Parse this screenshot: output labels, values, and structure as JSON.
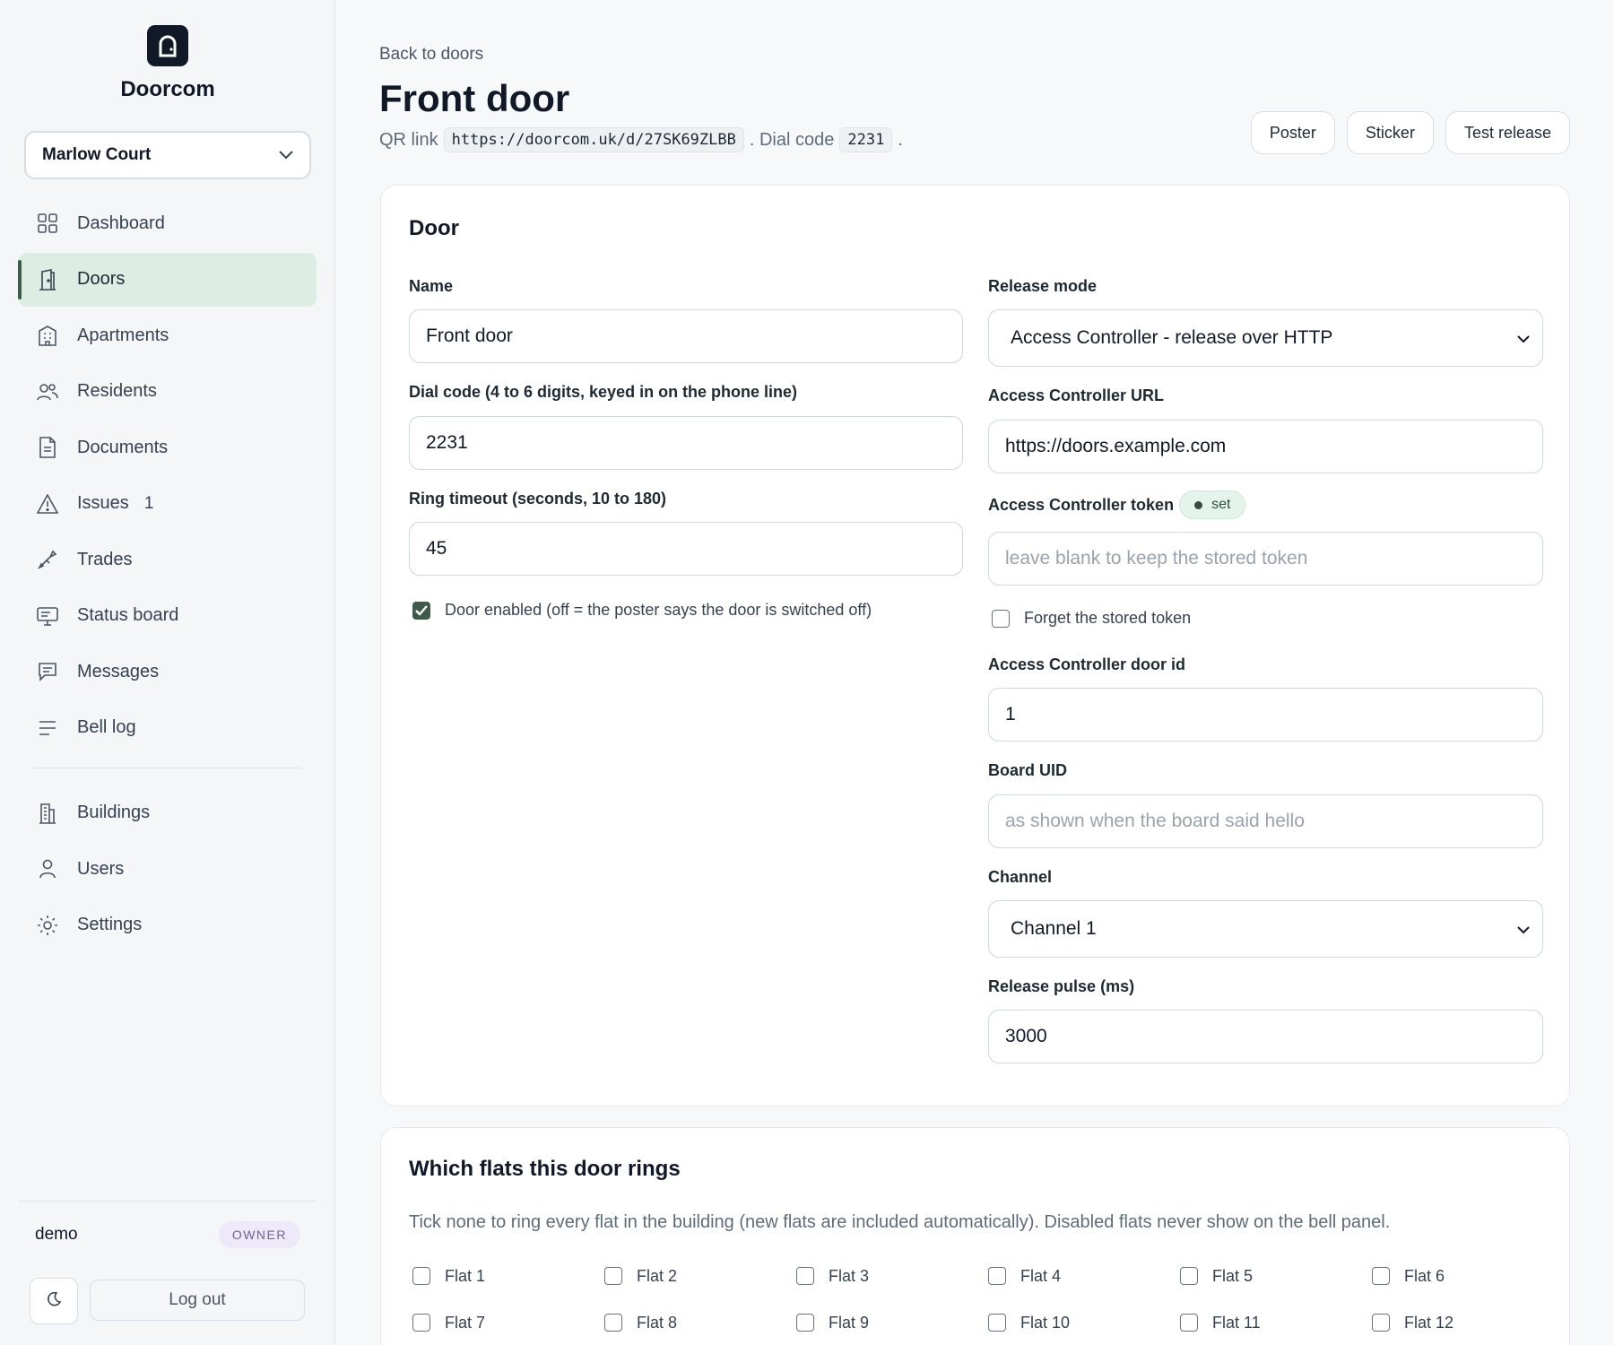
{
  "app": {
    "name": "Doorcom"
  },
  "sidebar": {
    "building": "Marlow Court",
    "items": [
      {
        "label": "Dashboard",
        "icon": "dashboard-icon",
        "active": false
      },
      {
        "label": "Doors",
        "icon": "door-icon",
        "active": true
      },
      {
        "label": "Apartments",
        "icon": "apartment-icon",
        "active": false
      },
      {
        "label": "Residents",
        "icon": "residents-icon",
        "active": false
      },
      {
        "label": "Documents",
        "icon": "document-icon",
        "active": false
      },
      {
        "label": "Issues",
        "icon": "warning-icon",
        "active": false,
        "count": "1"
      },
      {
        "label": "Trades",
        "icon": "wrench-icon",
        "active": false
      },
      {
        "label": "Status board",
        "icon": "monitor-icon",
        "active": false
      },
      {
        "label": "Messages",
        "icon": "message-icon",
        "active": false
      },
      {
        "label": "Bell log",
        "icon": "list-icon",
        "active": false
      }
    ],
    "admin_items": [
      {
        "label": "Buildings",
        "icon": "building-icon"
      },
      {
        "label": "Users",
        "icon": "user-icon"
      },
      {
        "label": "Settings",
        "icon": "settings-icon"
      }
    ],
    "user": {
      "name": "demo",
      "role": "OWNER"
    },
    "logout_label": "Log out"
  },
  "header": {
    "back_link": "Back to doors",
    "title": "Front door",
    "qr_prefix": "QR link",
    "qr_link": "https://doorcom.uk/d/27SK69ZLBB",
    "dial_prefix": ". Dial code",
    "dial_code": "2231",
    "dial_suffix": ".",
    "actions": [
      "Poster",
      "Sticker",
      "Test release"
    ]
  },
  "door_card": {
    "title": "Door",
    "name_label": "Name",
    "name_value": "Front door",
    "dial_label": "Dial code (4 to 6 digits, keyed in on the phone line)",
    "dial_value": "2231",
    "timeout_label": "Ring timeout (seconds, 10 to 180)",
    "timeout_value": "45",
    "enabled_label": "Door enabled (off = the poster says the door is switched off)",
    "enabled": true,
    "release_mode_label": "Release mode",
    "release_mode_value": "Access Controller - release over HTTP",
    "url_label": "Access Controller URL",
    "url_value": "https://doors.example.com",
    "token_label": "Access Controller token",
    "token_badge": "set",
    "token_placeholder": "leave blank to keep the stored token",
    "forget_label": "Forget the stored token",
    "forget": false,
    "door_id_label": "Access Controller door id",
    "door_id_value": "1",
    "board_uid_label": "Board UID",
    "board_uid_placeholder": "as shown when the board said hello",
    "channel_label": "Channel",
    "channel_value": "Channel 1",
    "pulse_label": "Release pulse (ms)",
    "pulse_value": "3000"
  },
  "flats_card": {
    "title": "Which flats this door rings",
    "note": "Tick none to ring every flat in the building (new flats are included automatically). Disabled flats never show on the bell panel.",
    "flats": [
      "Flat 1",
      "Flat 2",
      "Flat 3",
      "Flat 4",
      "Flat 5",
      "Flat 6",
      "Flat 7",
      "Flat 8",
      "Flat 9",
      "Flat 10",
      "Flat 11",
      "Flat 12"
    ]
  },
  "colors": {
    "accent": "#3d5a4c",
    "active_bg": "#dceee4",
    "logo_bg": "#111827"
  }
}
